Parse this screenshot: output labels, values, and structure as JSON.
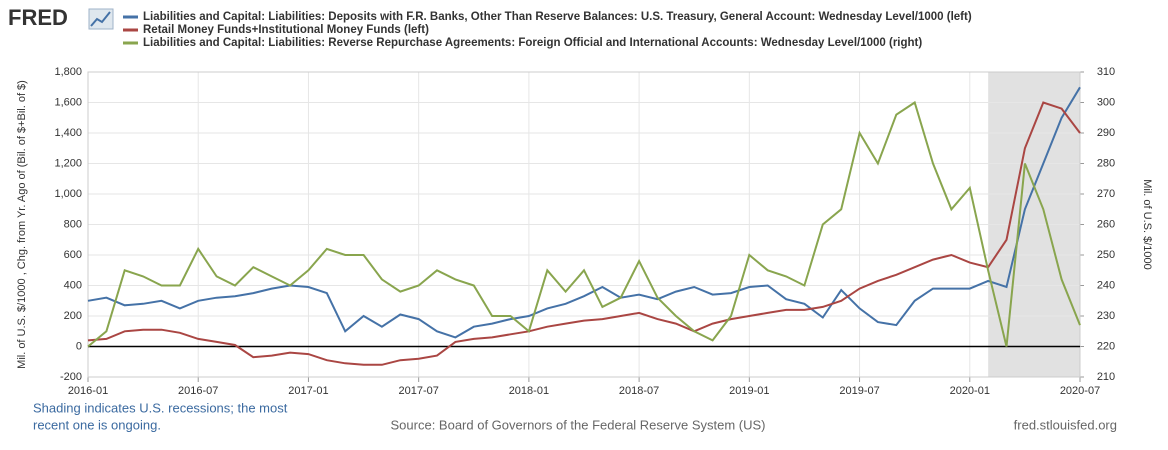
{
  "logo": "FRED",
  "chart_data": {
    "type": "line",
    "series": [
      {
        "name": "Liabilities and Capital: Liabilities: Deposits with F.R. Banks, Other Than Reserve Balances: U.S. Treasury, General Account: Wednesday Level/1000 (left)",
        "color": "#4572a7",
        "axis": "y",
        "values": [
          300,
          320,
          270,
          280,
          300,
          250,
          300,
          320,
          330,
          350,
          380,
          400,
          390,
          350,
          100,
          200,
          130,
          210,
          180,
          100,
          60,
          130,
          150,
          180,
          200,
          250,
          280,
          330,
          390,
          320,
          340,
          310,
          360,
          390,
          340,
          350,
          390,
          400,
          310,
          280,
          190,
          370,
          250,
          160,
          140,
          300,
          380,
          380,
          380,
          430,
          390,
          900,
          1200,
          1500,
          1700
        ]
      },
      {
        "name": "Retail Money Funds+Institutional Money Funds (left)",
        "color": "#aa4643",
        "axis": "y",
        "values": [
          40,
          50,
          100,
          110,
          110,
          90,
          50,
          30,
          10,
          -70,
          -60,
          -40,
          -50,
          -90,
          -110,
          -120,
          -120,
          -90,
          -80,
          -60,
          30,
          50,
          60,
          80,
          100,
          130,
          150,
          170,
          180,
          200,
          220,
          180,
          150,
          100,
          150,
          180,
          200,
          220,
          240,
          240,
          260,
          300,
          380,
          430,
          470,
          520,
          570,
          600,
          550,
          520,
          700,
          1300,
          1600,
          1560,
          1400
        ]
      },
      {
        "name": "Liabilities and Capital: Liabilities: Reverse Repurchase Agreements: Foreign Official and International Accounts: Wednesday Level/1000 (right)",
        "color": "#89a54e",
        "axis": "y2",
        "values": [
          220,
          225,
          245,
          243,
          240,
          240,
          252,
          243,
          240,
          246,
          243,
          240,
          245,
          252,
          250,
          250,
          242,
          238,
          240,
          245,
          242,
          240,
          230,
          230,
          225,
          245,
          238,
          245,
          233,
          236,
          248,
          236,
          230,
          225,
          222,
          230,
          250,
          245,
          243,
          240,
          260,
          265,
          290,
          280,
          296,
          300,
          280,
          265,
          272,
          245,
          220,
          280,
          265,
          242,
          227
        ]
      }
    ],
    "x": [
      "2016-01",
      "2016-02",
      "2016-03",
      "2016-04",
      "2016-05",
      "2016-06",
      "2016-07",
      "2016-08",
      "2016-09",
      "2016-10",
      "2016-11",
      "2016-12",
      "2017-01",
      "2017-02",
      "2017-03",
      "2017-04",
      "2017-05",
      "2017-06",
      "2017-07",
      "2017-08",
      "2017-09",
      "2017-10",
      "2017-11",
      "2017-12",
      "2018-01",
      "2018-02",
      "2018-03",
      "2018-04",
      "2018-05",
      "2018-06",
      "2018-07",
      "2018-08",
      "2018-09",
      "2018-10",
      "2018-11",
      "2018-12",
      "2019-01",
      "2019-02",
      "2019-03",
      "2019-04",
      "2019-05",
      "2019-06",
      "2019-07",
      "2019-08",
      "2019-09",
      "2019-10",
      "2019-11",
      "2019-12",
      "2020-01",
      "2020-02",
      "2020-03",
      "2020-04",
      "2020-05",
      "2020-06",
      "2020-07"
    ],
    "xlim": [
      "2016-01",
      "2020-07"
    ],
    "xticks": [
      "2016-01",
      "2016-07",
      "2017-01",
      "2017-07",
      "2018-01",
      "2018-07",
      "2019-01",
      "2019-07",
      "2020-01",
      "2020-07"
    ],
    "ylim": [
      -200,
      1800
    ],
    "yticks": [
      -200,
      0,
      {
        "value": 200,
        "label": "200"
      },
      400,
      600,
      800,
      {
        "value": 1000,
        "label": "1,000"
      },
      {
        "value": 1200,
        "label": "1,200"
      },
      {
        "value": 1400,
        "label": "1,400"
      },
      {
        "value": 1600,
        "label": "1,600"
      },
      {
        "value": 1800,
        "label": "1,800"
      }
    ],
    "y2lim": [
      210,
      310
    ],
    "y2ticks": [
      210,
      220,
      230,
      240,
      250,
      260,
      270,
      280,
      290,
      300,
      310
    ],
    "ylabel": "Mil. of U.S. $/1000 , Chg. from Yr. Ago of (Bil. of $+Bil. of $)",
    "y2label": "Mil. of U.S. $/1000",
    "recessions": [
      {
        "start": "2020-02",
        "end": "2020-07"
      }
    ],
    "grid": true,
    "zero_line": true
  },
  "footer": {
    "note": [
      "Shading indicates U.S. recessions; the most",
      "recent one is ongoing."
    ],
    "source": "Source: Board of Governors of the Federal Reserve System (US)",
    "site": "fred.stlouisfed.org"
  }
}
